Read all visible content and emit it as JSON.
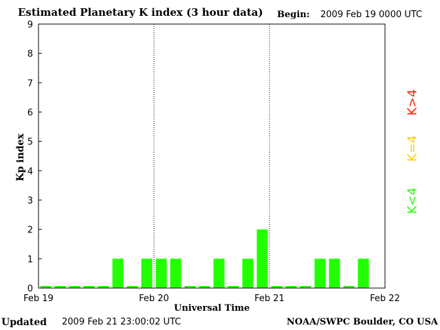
{
  "header": {
    "title": "Estimated Planetary K index (3 hour data)",
    "begin_label": "Begin:",
    "begin_value": "2009 Feb 19 0000 UTC"
  },
  "footer": {
    "updated_label": "Updated",
    "updated_value": "2009 Feb 21 23:00:02 UTC",
    "credit": "NOAA/SWPC Boulder, CO USA"
  },
  "legend": [
    {
      "label": "K>4",
      "color": "#ff2200"
    },
    {
      "label": "K=4",
      "color": "#ffcc00"
    },
    {
      "label": "K<4",
      "color": "#22ff00"
    }
  ],
  "chart_data": {
    "type": "bar",
    "title": "Estimated Planetary K index (3 hour data)",
    "xlabel": "Universal Time",
    "ylabel": "Kp index",
    "ylim": [
      0,
      9
    ],
    "yticks": [
      "0",
      "1",
      "2",
      "3",
      "4",
      "5",
      "6",
      "7",
      "8",
      "9"
    ],
    "xticks": [
      "Feb 19",
      "Feb 20",
      "Feb 21",
      "Feb 22"
    ],
    "day_separators": [
      "Feb 20",
      "Feb 21"
    ],
    "interval_hours": 3,
    "start": "2009 Feb 19 0000 UTC",
    "bar_color": "#22ff00",
    "values": [
      0,
      0,
      0,
      0,
      0,
      1,
      0,
      1,
      1,
      1,
      0,
      0,
      1,
      0,
      1,
      2,
      0,
      0,
      0,
      1,
      1,
      0,
      1
    ]
  }
}
